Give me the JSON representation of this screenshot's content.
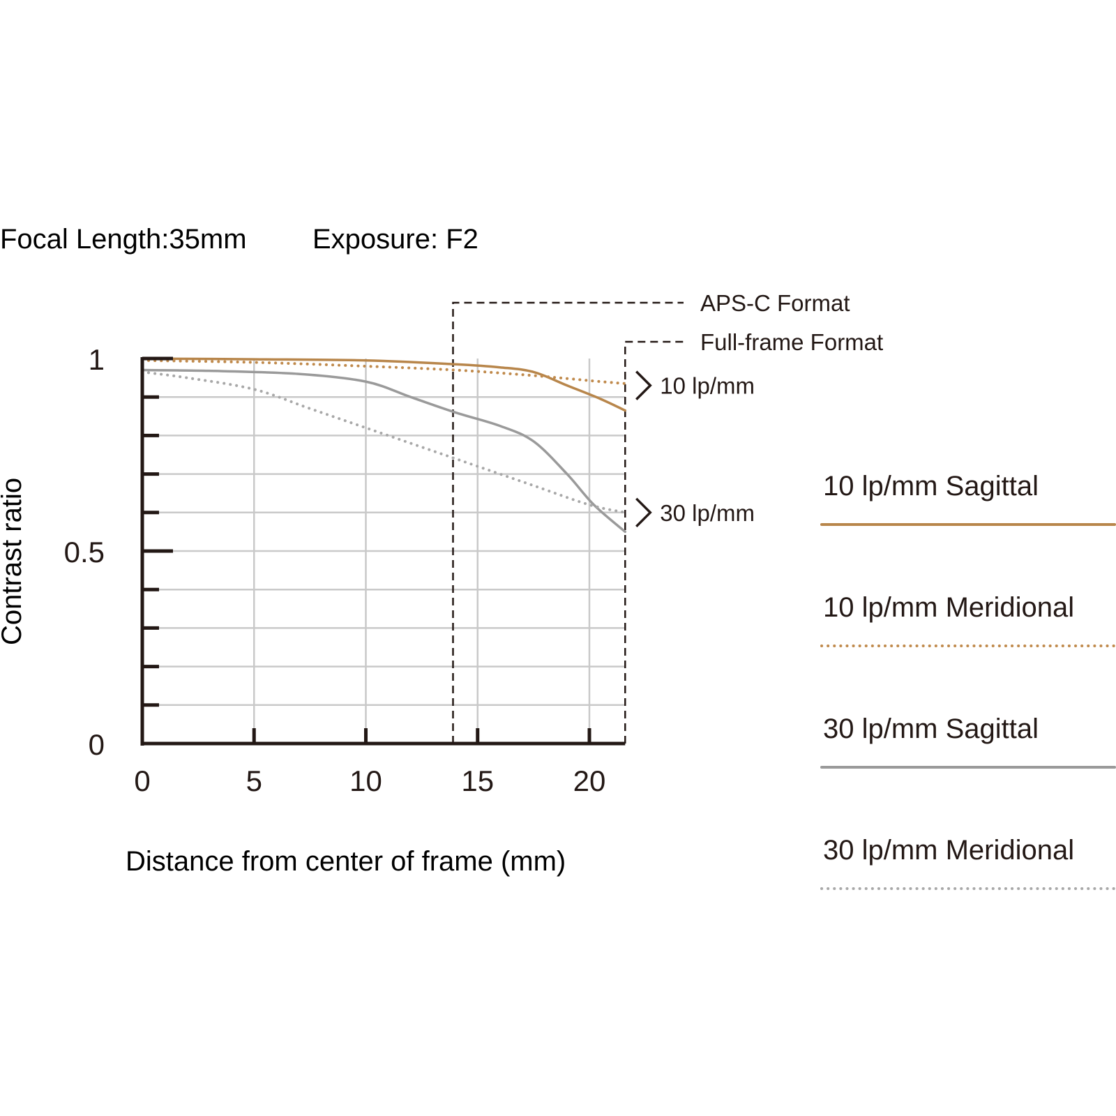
{
  "header": {
    "focal_length": "Focal Length:35mm",
    "exposure": "Exposure: F2"
  },
  "chart_data": {
    "type": "line",
    "xlabel": "Distance from center of frame (mm)",
    "ylabel": "Contrast ratio",
    "xlim": [
      0,
      21.6
    ],
    "ylim": [
      0,
      1
    ],
    "grid": true,
    "x_ticks": [
      {
        "value": 0,
        "label": "0"
      },
      {
        "value": 5,
        "label": "5"
      },
      {
        "value": 10,
        "label": "10"
      },
      {
        "value": 15,
        "label": "15"
      },
      {
        "value": 20,
        "label": "20"
      }
    ],
    "y_ticks": [
      {
        "value": 0,
        "label": "0"
      },
      {
        "value": 0.5,
        "label": "0.5"
      },
      {
        "value": 1,
        "label": "1"
      }
    ],
    "x_gridlines": [
      5,
      10,
      15,
      20
    ],
    "y_gridlines": [
      0.1,
      0.2,
      0.3,
      0.4,
      0.5,
      0.6,
      0.7,
      0.8,
      0.9
    ],
    "format_markers": [
      {
        "name": "APS-C Format",
        "x": 13.9
      },
      {
        "name": "Full-frame Format",
        "x": 21.6
      }
    ],
    "frequency_labels": [
      {
        "label": "10 lp/mm",
        "y": 0.93
      },
      {
        "label": "30 lp/mm",
        "y": 0.6
      }
    ],
    "series": [
      {
        "name": "10 lp/mm Sagittal",
        "style": "solid",
        "color": "#b8864b",
        "x": [
          0,
          5,
          10,
          14,
          16,
          17.5,
          19,
          20.5,
          21.6
        ],
        "y": [
          1.0,
          0.998,
          0.995,
          0.985,
          0.977,
          0.965,
          0.93,
          0.895,
          0.865
        ]
      },
      {
        "name": "10 lp/mm Meridional",
        "style": "dotted",
        "color": "#c08a4c",
        "x": [
          0,
          5,
          10,
          14,
          17,
          19,
          20.5,
          21.6
        ],
        "y": [
          0.995,
          0.99,
          0.98,
          0.97,
          0.958,
          0.948,
          0.94,
          0.935
        ]
      },
      {
        "name": "30 lp/mm Sagittal",
        "style": "solid",
        "color": "#9a9a9a",
        "x": [
          0,
          3,
          7,
          10,
          12,
          14,
          16,
          17.5,
          19,
          20.2,
          21.6
        ],
        "y": [
          0.97,
          0.968,
          0.96,
          0.94,
          0.9,
          0.86,
          0.825,
          0.785,
          0.7,
          0.62,
          0.55
        ]
      },
      {
        "name": "30 lp/mm Meridional",
        "style": "dotted",
        "color": "#a8a8a8",
        "x": [
          0,
          2,
          5,
          7.5,
          10,
          12.5,
          15,
          17.5,
          20,
          21.6
        ],
        "y": [
          0.965,
          0.95,
          0.92,
          0.87,
          0.82,
          0.77,
          0.72,
          0.67,
          0.62,
          0.6
        ]
      }
    ]
  }
}
